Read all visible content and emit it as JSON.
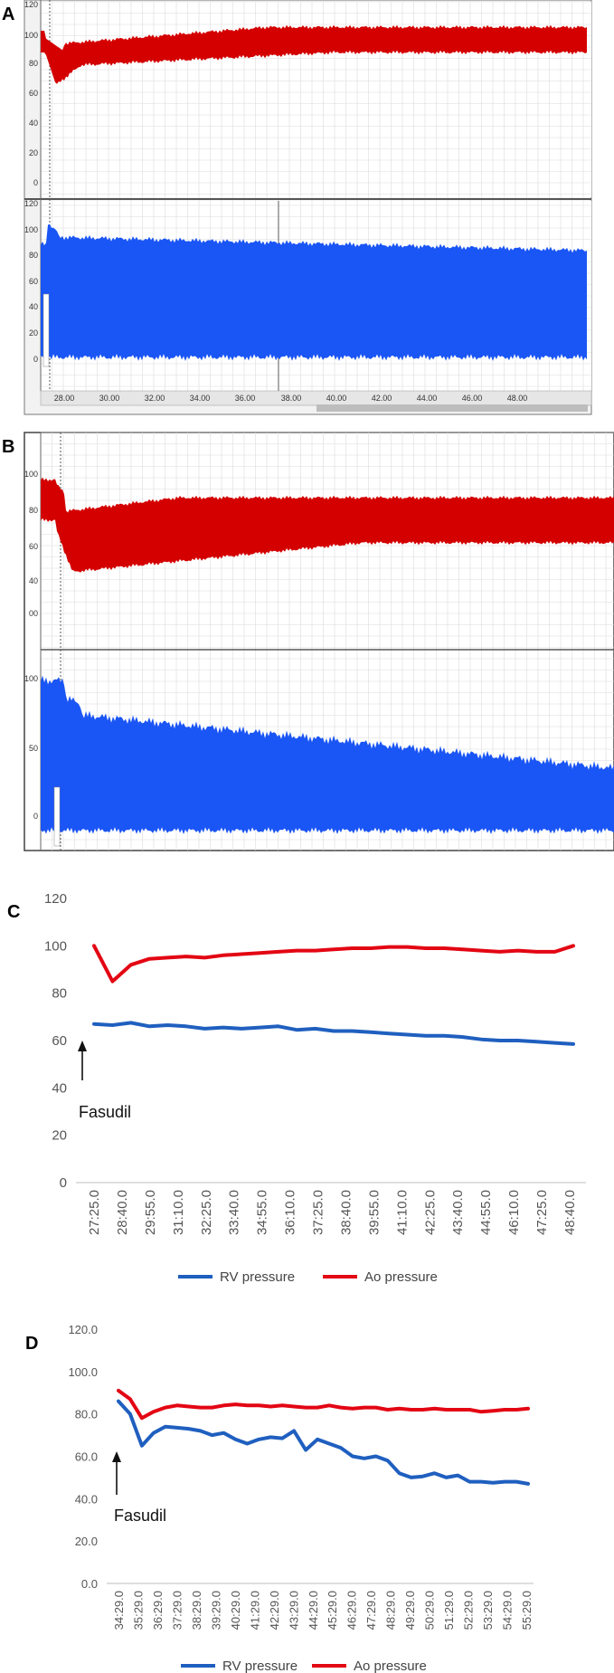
{
  "colors": {
    "rv": "#1f5fbf",
    "ao": "#e30613",
    "trace_blue": "#1a55f5",
    "trace_red": "#d40000"
  },
  "panels": {
    "A": {
      "letter": "A",
      "top_y_ticks": [
        "120",
        "100",
        "80",
        "60",
        "40",
        "20",
        "0"
      ],
      "bottom_y_ticks": [
        "120",
        "100",
        "80",
        "60",
        "40",
        "20",
        "0"
      ],
      "time_ticks": [
        "28.00",
        "30.00",
        "32.00",
        "34.00",
        "36.00",
        "38.00",
        "40.00",
        "42.00",
        "44.00",
        "46.00",
        "48.00"
      ]
    },
    "B": {
      "letter": "B",
      "top_y_ticks": [
        "100",
        "80",
        "60",
        "40",
        "00"
      ],
      "bottom_y_ticks": [
        "100",
        "50",
        "0"
      ]
    },
    "C": {
      "letter": "C",
      "annotation": "Fasudil"
    },
    "D": {
      "letter": "D",
      "annotation": "Fasudil"
    }
  },
  "chart_data": [
    {
      "type": "line",
      "panel": "C",
      "ylim": [
        0,
        120
      ],
      "y_ticks": [
        "0",
        "20",
        "40",
        "60",
        "80",
        "100",
        "120"
      ],
      "x_labels": [
        "27:25.0",
        "28:40.0",
        "29:55.0",
        "31:10.0",
        "32:25.0",
        "33:40.0",
        "34:55.0",
        "36:10.0",
        "37:25.0",
        "38:40.0",
        "39:55.0",
        "41:10.0",
        "42:25.0",
        "43:40.0",
        "44:55.0",
        "46:10.0",
        "47:25.0",
        "48:40.0"
      ],
      "series": [
        {
          "name": "RV pressure",
          "color": "#1f5fbf",
          "values": [
            67,
            66.5,
            67.5,
            66,
            66.5,
            66,
            65,
            65.5,
            65,
            65.5,
            66,
            64.5,
            65,
            64,
            64,
            63.5,
            63,
            62.5,
            62,
            62,
            61.5,
            60.5,
            60,
            60,
            59.5,
            59,
            58.5
          ]
        },
        {
          "name": "Ao pressure",
          "color": "#e30613",
          "values": [
            100,
            85,
            92,
            94.5,
            95,
            95.5,
            95,
            96,
            96.5,
            97,
            97.5,
            98,
            98,
            98.5,
            99,
            99,
            99.5,
            99.5,
            99,
            99,
            98.5,
            98,
            97.5,
            98,
            97.5,
            97.5,
            100
          ]
        }
      ]
    },
    {
      "type": "line",
      "panel": "D",
      "ylim": [
        0,
        120
      ],
      "y_ticks": [
        "0.0",
        "20.0",
        "40.0",
        "60.0",
        "80.0",
        "100.0",
        "120.0"
      ],
      "x_labels": [
        "34:29.0",
        "35:29.0",
        "36:29.0",
        "37:29.0",
        "38:29.0",
        "39:29.0",
        "40:29.0",
        "41:29.0",
        "42:29.0",
        "43:29.0",
        "44:29.0",
        "45:29.0",
        "46:29.0",
        "47:29.0",
        "48:29.0",
        "49:29.0",
        "50:29.0",
        "51:29.0",
        "52:29.0",
        "53:29.0",
        "54:29.0",
        "55:29.0"
      ],
      "series": [
        {
          "name": "RV pressure",
          "color": "#1f5fbf",
          "values": [
            86,
            80,
            65,
            71,
            74,
            73.5,
            73,
            72,
            70,
            71,
            68,
            66,
            68,
            69,
            68.5,
            72,
            63,
            68,
            66,
            64,
            60,
            59,
            60,
            58,
            52,
            50,
            50.5,
            52,
            50,
            51,
            48,
            48,
            47.5,
            48,
            48,
            47
          ]
        },
        {
          "name": "Ao pressure",
          "color": "#e30613",
          "values": [
            91,
            87,
            78,
            81,
            83,
            84,
            83.5,
            83,
            83,
            84,
            84.5,
            84,
            84,
            83.5,
            84,
            83.5,
            83,
            83,
            84,
            83,
            82.5,
            83,
            83,
            82,
            82.5,
            82,
            82,
            82.5,
            82,
            82,
            82,
            81,
            81.5,
            82,
            82,
            82.5
          ]
        }
      ]
    }
  ]
}
